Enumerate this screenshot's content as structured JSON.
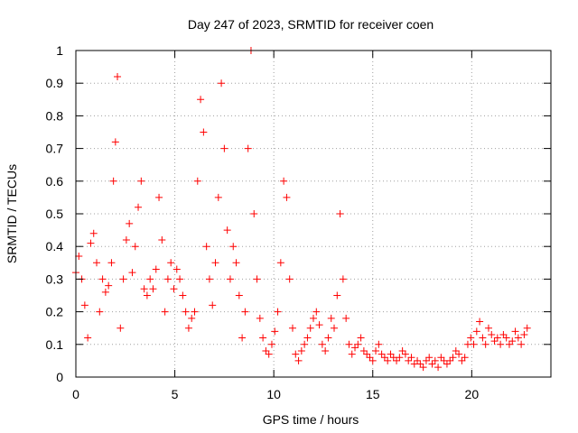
{
  "chart_data": {
    "type": "scatter",
    "title": "Day 247 of 2023, SRMTID for receiver coen",
    "xlabel": "GPS time / hours",
    "ylabel": "SRMTID / TECUs",
    "xlim": [
      0,
      24
    ],
    "ylim": [
      0,
      1
    ],
    "xticks": [
      0,
      5,
      10,
      15,
      20
    ],
    "yticks": [
      0,
      0.1,
      0.2,
      0.3,
      0.4,
      0.5,
      0.6,
      0.7,
      0.8,
      0.9,
      1
    ],
    "xtick_labels": [
      "0",
      "5",
      "10",
      "15",
      "20"
    ],
    "ytick_labels": [
      "0",
      "0.1",
      "0.2",
      "0.3",
      "0.4",
      "0.5",
      "0.6",
      "0.7",
      "0.8",
      "0.9",
      "1"
    ],
    "grid": true,
    "marker": "+",
    "color": "#ff0000",
    "series": [
      {
        "name": "SRMTID",
        "x": [
          0.0,
          0.15,
          0.3,
          0.45,
          0.6,
          0.75,
          0.9,
          1.05,
          1.2,
          1.35,
          1.5,
          1.65,
          1.8,
          1.9,
          2.0,
          2.1,
          2.25,
          2.4,
          2.55,
          2.7,
          2.85,
          3.0,
          3.15,
          3.3,
          3.45,
          3.6,
          3.75,
          3.9,
          4.05,
          4.2,
          4.35,
          4.5,
          4.65,
          4.8,
          4.95,
          5.1,
          5.25,
          5.4,
          5.55,
          5.7,
          5.85,
          6.0,
          6.15,
          6.3,
          6.45,
          6.6,
          6.75,
          6.9,
          7.05,
          7.2,
          7.35,
          7.5,
          7.65,
          7.8,
          7.95,
          8.1,
          8.25,
          8.4,
          8.55,
          8.7,
          8.85,
          9.0,
          9.15,
          9.3,
          9.45,
          9.6,
          9.75,
          9.9,
          10.05,
          10.2,
          10.35,
          10.5,
          10.65,
          10.8,
          10.95,
          11.1,
          11.25,
          11.4,
          11.55,
          11.7,
          11.85,
          12.0,
          12.15,
          12.3,
          12.45,
          12.6,
          12.75,
          12.9,
          13.05,
          13.2,
          13.35,
          13.5,
          13.65,
          13.8,
          13.95,
          14.1,
          14.25,
          14.4,
          14.55,
          14.7,
          14.85,
          15.0,
          15.15,
          15.3,
          15.45,
          15.6,
          15.75,
          15.9,
          16.05,
          16.2,
          16.35,
          16.5,
          16.65,
          16.8,
          16.95,
          17.1,
          17.25,
          17.4,
          17.55,
          17.7,
          17.85,
          18.0,
          18.15,
          18.3,
          18.45,
          18.6,
          18.75,
          18.9,
          19.05,
          19.2,
          19.35,
          19.5,
          19.65,
          19.8,
          19.95,
          20.1,
          20.25,
          20.4,
          20.55,
          20.7,
          20.85,
          21.0,
          21.15,
          21.3,
          21.45,
          21.6,
          21.75,
          21.9,
          22.05,
          22.2,
          22.35,
          22.5,
          22.65,
          22.8
        ],
        "y": [
          0.32,
          0.37,
          0.3,
          0.22,
          0.12,
          0.41,
          0.44,
          0.35,
          0.2,
          0.3,
          0.26,
          0.28,
          0.35,
          0.6,
          0.72,
          0.92,
          0.15,
          0.3,
          0.42,
          0.47,
          0.32,
          0.4,
          0.52,
          0.6,
          0.27,
          0.25,
          0.3,
          0.27,
          0.33,
          0.55,
          0.42,
          0.2,
          0.3,
          0.35,
          0.27,
          0.33,
          0.3,
          0.25,
          0.2,
          0.15,
          0.18,
          0.2,
          0.6,
          0.85,
          0.75,
          0.4,
          0.3,
          0.22,
          0.35,
          0.55,
          0.9,
          0.7,
          0.45,
          0.3,
          0.4,
          0.35,
          0.25,
          0.12,
          0.2,
          0.7,
          1.0,
          0.5,
          0.3,
          0.18,
          0.12,
          0.08,
          0.07,
          0.1,
          0.14,
          0.2,
          0.35,
          0.6,
          0.55,
          0.3,
          0.15,
          0.07,
          0.05,
          0.08,
          0.1,
          0.12,
          0.15,
          0.18,
          0.2,
          0.16,
          0.1,
          0.08,
          0.12,
          0.18,
          0.15,
          0.25,
          0.5,
          0.3,
          0.18,
          0.1,
          0.07,
          0.09,
          0.1,
          0.12,
          0.08,
          0.07,
          0.06,
          0.05,
          0.08,
          0.1,
          0.07,
          0.06,
          0.05,
          0.07,
          0.06,
          0.05,
          0.06,
          0.08,
          0.07,
          0.05,
          0.06,
          0.04,
          0.05,
          0.04,
          0.03,
          0.05,
          0.06,
          0.04,
          0.05,
          0.03,
          0.06,
          0.05,
          0.04,
          0.05,
          0.06,
          0.08,
          0.07,
          0.05,
          0.06,
          0.1,
          0.12,
          0.1,
          0.14,
          0.17,
          0.12,
          0.1,
          0.15,
          0.13,
          0.11,
          0.12,
          0.1,
          0.13,
          0.12,
          0.1,
          0.11,
          0.14,
          0.12,
          0.1,
          0.13,
          0.15
        ]
      }
    ]
  }
}
